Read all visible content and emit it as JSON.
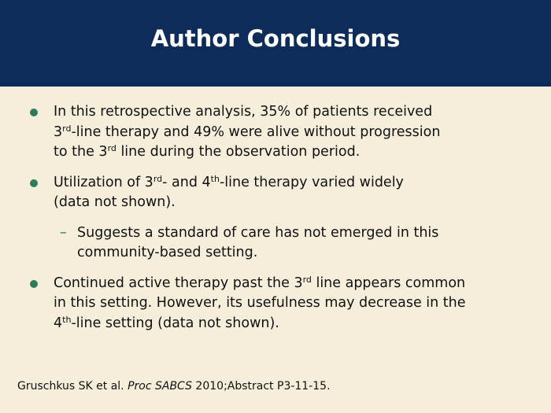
{
  "header": {
    "title": "Author Conclusions"
  },
  "bullets": [
    {
      "level": 1,
      "lines": [
        [
          {
            "t": "In this retrospective analysis, 35% of patients received"
          }
        ],
        [
          {
            "t": "3"
          },
          {
            "sup": "rd"
          },
          {
            "t": "-line therapy and 49% were alive without progression"
          }
        ],
        [
          {
            "t": "to the 3"
          },
          {
            "sup": "rd"
          },
          {
            "t": " line during the observation period."
          }
        ]
      ]
    },
    {
      "level": 1,
      "lines": [
        [
          {
            "t": "Utilization of 3"
          },
          {
            "sup": "rd"
          },
          {
            "t": "- and 4"
          },
          {
            "sup": "th"
          },
          {
            "t": "-line therapy varied widely"
          }
        ],
        [
          {
            "t": "(data not shown)."
          }
        ]
      ]
    },
    {
      "level": 2,
      "marker": "–",
      "lines": [
        [
          {
            "t": "Suggests a standard of care has not emerged in this"
          }
        ],
        [
          {
            "t": "community-based setting."
          }
        ]
      ]
    },
    {
      "level": 1,
      "lines": [
        [
          {
            "t": "Continued active therapy past the 3"
          },
          {
            "sup": "rd"
          },
          {
            "t": " line appears common"
          }
        ],
        [
          {
            "t": "in this setting. However, its usefulness may decrease in the"
          }
        ],
        [
          {
            "t": "4"
          },
          {
            "sup": "th"
          },
          {
            "t": "-line setting (data not shown)."
          }
        ]
      ]
    }
  ],
  "footer": {
    "runs": [
      {
        "t": "Gruschkus SK et al. "
      },
      {
        "i": "Proc SABCS"
      },
      {
        "t": " 2010;Abstract P3-11-15."
      }
    ]
  }
}
